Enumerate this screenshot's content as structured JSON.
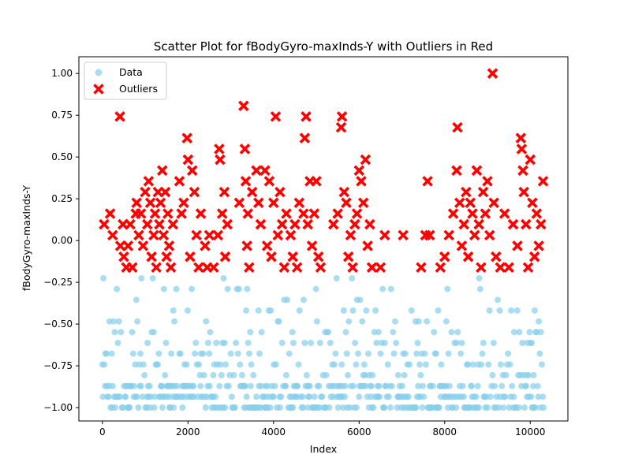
{
  "chart_data": {
    "type": "scatter",
    "title": "Scatter Plot for fBodyGyro-maxInds-Y with Outliers in Red",
    "xlabel": "Index",
    "ylabel": "fBodyGyro-maxInds-Y",
    "xlim": [
      -550,
      10880
    ],
    "ylim": [
      -1.08,
      1.1
    ],
    "xticks": [
      0,
      2000,
      4000,
      6000,
      8000,
      10000
    ],
    "xtick_labels": [
      "0",
      "2000",
      "4000",
      "6000",
      "8000",
      "10000"
    ],
    "yticks": [
      -1.0,
      -0.75,
      -0.5,
      -0.25,
      0.0,
      0.25,
      0.5,
      0.75,
      1.0
    ],
    "ytick_labels": [
      "−1.00",
      "−0.75",
      "−0.50",
      "−0.25",
      "0.00",
      "0.25",
      "0.50",
      "0.75",
      "1.00"
    ],
    "grid": false,
    "legend_position": "top-left",
    "series": [
      {
        "name": "Data",
        "color": "#87CEEB",
        "marker": "circle",
        "alpha": 0.7,
        "x_range": [
          0,
          10299
        ],
        "y_levels": [
          -1.0,
          -0.935,
          -0.871,
          -0.806,
          -0.742,
          -0.677,
          -0.613,
          -0.548,
          -0.484,
          -0.419,
          -0.355,
          -0.29,
          -0.226
        ],
        "note_values": "approx 10,300 points on discrete levels from -1.00 to -0.23"
      },
      {
        "name": "Outliers",
        "color": "#FF0000",
        "marker": "x",
        "points": [
          [
            40,
            0.097
          ],
          [
            180,
            0.161
          ],
          [
            240,
            0.032
          ],
          [
            410,
            0.742
          ],
          [
            420,
            -0.032
          ],
          [
            480,
            0.097
          ],
          [
            500,
            -0.097
          ],
          [
            560,
            -0.161
          ],
          [
            600,
            -0.032
          ],
          [
            650,
            0.097
          ],
          [
            700,
            -0.161
          ],
          [
            780,
            0.161
          ],
          [
            800,
            0.226
          ],
          [
            850,
            0.032
          ],
          [
            900,
            0.161
          ],
          [
            950,
            -0.032
          ],
          [
            1000,
            0.29
          ],
          [
            1050,
            0.097
          ],
          [
            1080,
            0.355
          ],
          [
            1120,
            0.226
          ],
          [
            1150,
            -0.097
          ],
          [
            1200,
            0.032
          ],
          [
            1230,
            0.161
          ],
          [
            1260,
            -0.161
          ],
          [
            1300,
            0.29
          ],
          [
            1330,
            0.097
          ],
          [
            1360,
            0.226
          ],
          [
            1400,
            0.419
          ],
          [
            1430,
            0.032
          ],
          [
            1470,
            0.29
          ],
          [
            1500,
            -0.097
          ],
          [
            1530,
            0.161
          ],
          [
            1560,
            -0.032
          ],
          [
            1600,
            -0.161
          ],
          [
            1650,
            0.097
          ],
          [
            1800,
            0.355
          ],
          [
            1850,
            0.161
          ],
          [
            1900,
            0.226
          ],
          [
            1980,
            0.613
          ],
          [
            2000,
            0.484
          ],
          [
            2050,
            -0.097
          ],
          [
            2100,
            0.419
          ],
          [
            2150,
            0.29
          ],
          [
            2200,
            0.032
          ],
          [
            2250,
            -0.161
          ],
          [
            2300,
            0.161
          ],
          [
            2400,
            -0.032
          ],
          [
            2450,
            -0.161
          ],
          [
            2500,
            0.032
          ],
          [
            2600,
            -0.161
          ],
          [
            2700,
            0.032
          ],
          [
            2730,
            0.548
          ],
          [
            2750,
            0.484
          ],
          [
            2800,
            0.161
          ],
          [
            2850,
            0.29
          ],
          [
            2870,
            -0.097
          ],
          [
            2920,
            0.097
          ],
          [
            3200,
            0.226
          ],
          [
            3300,
            0.806
          ],
          [
            3330,
            0.548
          ],
          [
            3350,
            0.355
          ],
          [
            3380,
            -0.032
          ],
          [
            3400,
            0.161
          ],
          [
            3430,
            -0.161
          ],
          [
            3500,
            0.29
          ],
          [
            3600,
            0.419
          ],
          [
            3650,
            0.226
          ],
          [
            3700,
            0.097
          ],
          [
            3800,
            0.419
          ],
          [
            3850,
            -0.032
          ],
          [
            3900,
            0.355
          ],
          [
            3950,
            -0.097
          ],
          [
            4000,
            0.226
          ],
          [
            4050,
            0.742
          ],
          [
            4100,
            0.032
          ],
          [
            4150,
            0.29
          ],
          [
            4200,
            0.097
          ],
          [
            4250,
            -0.161
          ],
          [
            4300,
            0.161
          ],
          [
            4400,
            0.032
          ],
          [
            4450,
            -0.097
          ],
          [
            4500,
            0.097
          ],
          [
            4550,
            -0.161
          ],
          [
            4600,
            0.226
          ],
          [
            4700,
            0.161
          ],
          [
            4730,
            0.613
          ],
          [
            4760,
            0.742
          ],
          [
            4800,
            0.097
          ],
          [
            4850,
            0.355
          ],
          [
            4900,
            -0.032
          ],
          [
            4950,
            0.161
          ],
          [
            5000,
            0.355
          ],
          [
            5050,
            -0.097
          ],
          [
            5100,
            -0.161
          ],
          [
            5400,
            0.097
          ],
          [
            5500,
            0.161
          ],
          [
            5580,
            0.677
          ],
          [
            5600,
            0.742
          ],
          [
            5650,
            0.29
          ],
          [
            5700,
            0.226
          ],
          [
            5750,
            -0.097
          ],
          [
            5800,
            0.032
          ],
          [
            5850,
            -0.161
          ],
          [
            5900,
            0.097
          ],
          [
            5950,
            0.161
          ],
          [
            6000,
            0.419
          ],
          [
            6050,
            0.355
          ],
          [
            6100,
            0.226
          ],
          [
            6150,
            0.484
          ],
          [
            6200,
            -0.032
          ],
          [
            6250,
            0.097
          ],
          [
            6300,
            -0.161
          ],
          [
            6500,
            -0.161
          ],
          [
            6600,
            0.032
          ],
          [
            7030,
            0.032
          ],
          [
            7450,
            -0.161
          ],
          [
            7550,
            0.032
          ],
          [
            7600,
            0.355
          ],
          [
            7650,
            0.032
          ],
          [
            7900,
            -0.161
          ],
          [
            8000,
            -0.097
          ],
          [
            8100,
            0.032
          ],
          [
            8200,
            0.161
          ],
          [
            8280,
            0.419
          ],
          [
            8300,
            0.677
          ],
          [
            8350,
            0.226
          ],
          [
            8400,
            -0.032
          ],
          [
            8450,
            0.097
          ],
          [
            8500,
            0.29
          ],
          [
            8550,
            -0.097
          ],
          [
            8600,
            0.226
          ],
          [
            8650,
            0.161
          ],
          [
            8700,
            0.032
          ],
          [
            8750,
            0.419
          ],
          [
            8800,
            0.097
          ],
          [
            8850,
            -0.161
          ],
          [
            8900,
            0.29
          ],
          [
            8950,
            0.161
          ],
          [
            9000,
            0.355
          ],
          [
            9050,
            0.032
          ],
          [
            9120,
            1.0
          ],
          [
            9150,
            0.226
          ],
          [
            9200,
            -0.097
          ],
          [
            9300,
            -0.161
          ],
          [
            9400,
            0.161
          ],
          [
            9500,
            -0.161
          ],
          [
            9600,
            0.097
          ],
          [
            9700,
            -0.032
          ],
          [
            9780,
            0.613
          ],
          [
            9800,
            0.548
          ],
          [
            9830,
            0.419
          ],
          [
            9850,
            0.29
          ],
          [
            9900,
            0.097
          ],
          [
            9950,
            -0.161
          ],
          [
            10000,
            0.484
          ],
          [
            10050,
            0.226
          ],
          [
            10100,
            -0.097
          ],
          [
            10150,
            0.161
          ],
          [
            10200,
            -0.032
          ],
          [
            10250,
            0.097
          ],
          [
            10300,
            0.355
          ]
        ]
      }
    ]
  }
}
